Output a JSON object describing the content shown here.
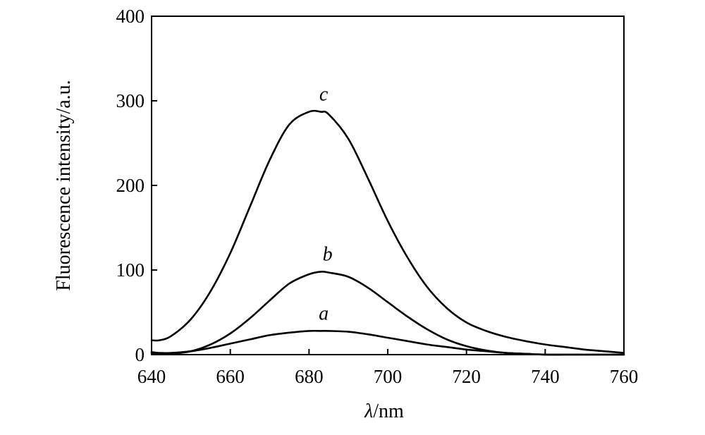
{
  "chart_data": {
    "type": "line",
    "title": "",
    "xlabel": {
      "symbol": "λ",
      "unit": "/nm"
    },
    "ylabel": "Fluorescence intensity/a.u.",
    "xlim": [
      640,
      760
    ],
    "ylim": [
      0,
      400
    ],
    "xticks": [
      640,
      660,
      680,
      700,
      720,
      740,
      760
    ],
    "yticks": [
      0,
      100,
      200,
      300,
      400
    ],
    "x": [
      640,
      642,
      645,
      650,
      655,
      660,
      665,
      670,
      675,
      680,
      683,
      685,
      690,
      695,
      700,
      705,
      710,
      715,
      720,
      725,
      730,
      735,
      740,
      745,
      750,
      755,
      760
    ],
    "series": [
      {
        "name": "a",
        "values": [
          3,
          2,
          2,
          4,
          8,
          13,
          18,
          23,
          26,
          28,
          28,
          28,
          27,
          24,
          20,
          16,
          12,
          9,
          6,
          4,
          2,
          1,
          0,
          0,
          0,
          0,
          0
        ]
      },
      {
        "name": "b",
        "values": [
          2,
          1,
          1,
          4,
          12,
          25,
          43,
          64,
          84,
          95,
          98,
          97,
          92,
          79,
          62,
          45,
          30,
          18,
          10,
          5,
          2,
          1,
          0,
          0,
          0,
          0,
          0
        ]
      },
      {
        "name": "c",
        "values": [
          17,
          17,
          22,
          42,
          75,
          120,
          175,
          230,
          272,
          287,
          287,
          284,
          255,
          208,
          158,
          115,
          80,
          55,
          38,
          28,
          21,
          16,
          12,
          9,
          6,
          4,
          2
        ]
      }
    ],
    "curve_labels": [
      {
        "series": "a",
        "text": "a",
        "x": 683,
        "y": 28
      },
      {
        "series": "b",
        "text": "b",
        "x": 684,
        "y": 98
      },
      {
        "series": "c",
        "text": "c",
        "x": 683,
        "y": 287
      }
    ],
    "grid": false,
    "legend": "none"
  }
}
